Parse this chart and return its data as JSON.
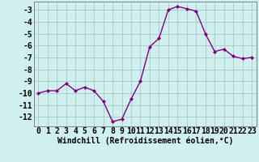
{
  "x": [
    0,
    1,
    2,
    3,
    4,
    5,
    6,
    7,
    8,
    9,
    10,
    11,
    12,
    13,
    14,
    15,
    16,
    17,
    18,
    19,
    20,
    21,
    22,
    23
  ],
  "y": [
    -10,
    -9.8,
    -9.8,
    -9.2,
    -9.8,
    -9.5,
    -9.8,
    -10.7,
    -12.4,
    -12.2,
    -10.5,
    -9.0,
    -6.1,
    -5.4,
    -3.0,
    -2.7,
    -2.9,
    -3.1,
    -5.0,
    -6.5,
    -6.3,
    -6.9,
    -7.1,
    -7.0
  ],
  "line_color": "#800080",
  "marker": "D",
  "marker_size": 2,
  "bg_color": "#d0f0f0",
  "grid_color": "#aacece",
  "xlabel": "Windchill (Refroidissement éolien,°C)",
  "xlabel_fontsize": 7,
  "xtick_labels": [
    "0",
    "1",
    "2",
    "3",
    "4",
    "5",
    "6",
    "7",
    "8",
    "9",
    "10",
    "11",
    "12",
    "13",
    "14",
    "15",
    "16",
    "17",
    "18",
    "19",
    "20",
    "21",
    "22",
    "23"
  ],
  "ytick_values": [
    -3,
    -4,
    -5,
    -6,
    -7,
    -8,
    -9,
    -10,
    -11,
    -12
  ],
  "ylim": [
    -12.8,
    -2.3
  ],
  "xlim": [
    -0.5,
    23.5
  ],
  "tick_fontsize": 7,
  "line_width": 1.0
}
